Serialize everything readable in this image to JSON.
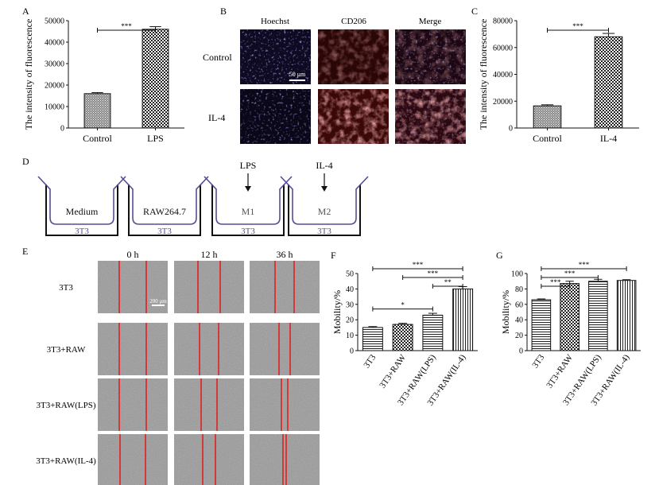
{
  "panel_labels": {
    "A": "A",
    "B": "B",
    "C": "C",
    "D": "D",
    "E": "E",
    "F": "F",
    "G": "G"
  },
  "colors": {
    "hoechst": "#7a6bd9",
    "cd206": "#c4505a",
    "scratch_line": "#e02020",
    "well_purple": "#5a4c93"
  },
  "chart_data": [
    {
      "id": "A",
      "type": "bar",
      "categories": [
        "Control",
        "LPS"
      ],
      "values": [
        16000,
        46000
      ],
      "errors": [
        500,
        1200
      ],
      "ylabel": "The intensity of fluorescence",
      "ylim": [
        0,
        50000
      ],
      "yticks": [
        "0",
        "10000",
        "20000",
        "30000",
        "40000",
        "50000"
      ],
      "significance": [
        {
          "from": 0,
          "to": 1,
          "label": "***"
        }
      ]
    },
    {
      "id": "C",
      "type": "bar",
      "categories": [
        "Control",
        "IL-4"
      ],
      "values": [
        16500,
        68000
      ],
      "errors": [
        800,
        2500
      ],
      "ylabel": "The intensity of fluorescence",
      "ylim": [
        0,
        80000
      ],
      "yticks": [
        "0",
        "20000",
        "40000",
        "60000",
        "80000"
      ],
      "significance": [
        {
          "from": 0,
          "to": 1,
          "label": "***"
        }
      ]
    },
    {
      "id": "F",
      "type": "bar",
      "categories": [
        "3T3",
        "3T3+RAW",
        "3T3+RAW(LPS)",
        "3T3+RAW(IL-4)"
      ],
      "values": [
        15,
        17,
        23,
        40
      ],
      "errors": [
        0.6,
        0.7,
        1.2,
        1.5
      ],
      "ylabel": "Mobility/%",
      "ylim": [
        0,
        50
      ],
      "yticks": [
        "0",
        "10",
        "20",
        "30",
        "40",
        "50"
      ],
      "significance": [
        {
          "from": 0,
          "to": 3,
          "label": "***"
        },
        {
          "from": 1,
          "to": 3,
          "label": "***"
        },
        {
          "from": 2,
          "to": 3,
          "label": "**"
        },
        {
          "from": 0,
          "to": 2,
          "label": "*"
        }
      ]
    },
    {
      "id": "G",
      "type": "bar",
      "categories": [
        "3T3",
        "3T3+RAW",
        "3T3+RAW(LPS)",
        "3T3+RAW(IL-4)"
      ],
      "values": [
        66,
        87,
        90,
        91
      ],
      "errors": [
        1,
        3,
        2.5,
        1
      ],
      "ylabel": "Mobility/%",
      "ylim": [
        0,
        100
      ],
      "yticks": [
        "0",
        "20",
        "40",
        "60",
        "80",
        "100"
      ],
      "significance": [
        {
          "from": 0,
          "to": 3,
          "label": "***"
        },
        {
          "from": 0,
          "to": 2,
          "label": "***"
        },
        {
          "from": 0,
          "to": 1,
          "label": "***"
        }
      ]
    }
  ],
  "microscopy": {
    "columns": [
      "Hoechst",
      "CD206",
      "Merge"
    ],
    "rows": [
      "Control",
      "IL-4"
    ],
    "scale_bar": "50 μm"
  },
  "diagram": {
    "wells": [
      {
        "inner": "Medium",
        "outer": "3T3",
        "arrow": ""
      },
      {
        "inner": "RAW264.7",
        "outer": "3T3",
        "arrow": ""
      },
      {
        "inner": "M1",
        "outer": "3T3",
        "arrow": "LPS"
      },
      {
        "inner": "M2",
        "outer": "3T3",
        "arrow": "IL-4"
      }
    ]
  },
  "scratch": {
    "timepoints": [
      "0 h",
      "12 h",
      "36 h"
    ],
    "rows": [
      "3T3",
      "3T3+RAW",
      "3T3+RAW(LPS)",
      "3T3+RAW(IL-4)"
    ],
    "scale_bar": "200 μm"
  }
}
